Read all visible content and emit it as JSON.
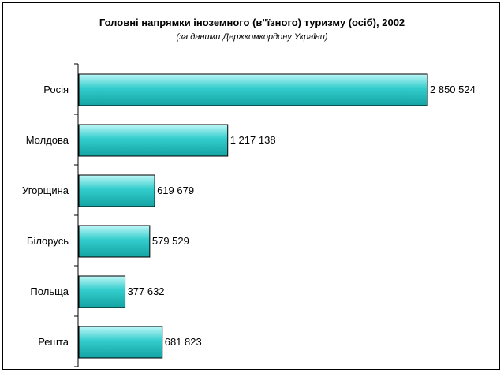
{
  "chart_data": {
    "type": "bar",
    "orientation": "horizontal",
    "title": "Головні напрямки іноземного (в\"їзного) туризму (осіб), 2002",
    "subtitle": "(за даними Держкомкордону України)",
    "categories": [
      "Росія",
      "Молдова",
      "Угорщина",
      "Білорусь",
      "Польща",
      "Решта"
    ],
    "values": [
      2850524,
      1217138,
      619679,
      579529,
      377632,
      681823
    ],
    "value_labels": [
      "2 850 524",
      "1 217 138",
      "619 679",
      "579 529",
      "377 632",
      "681 823"
    ],
    "xlim": [
      0,
      3000000
    ],
    "grid": false,
    "legend": "none",
    "bar_color": "#33cccc"
  }
}
